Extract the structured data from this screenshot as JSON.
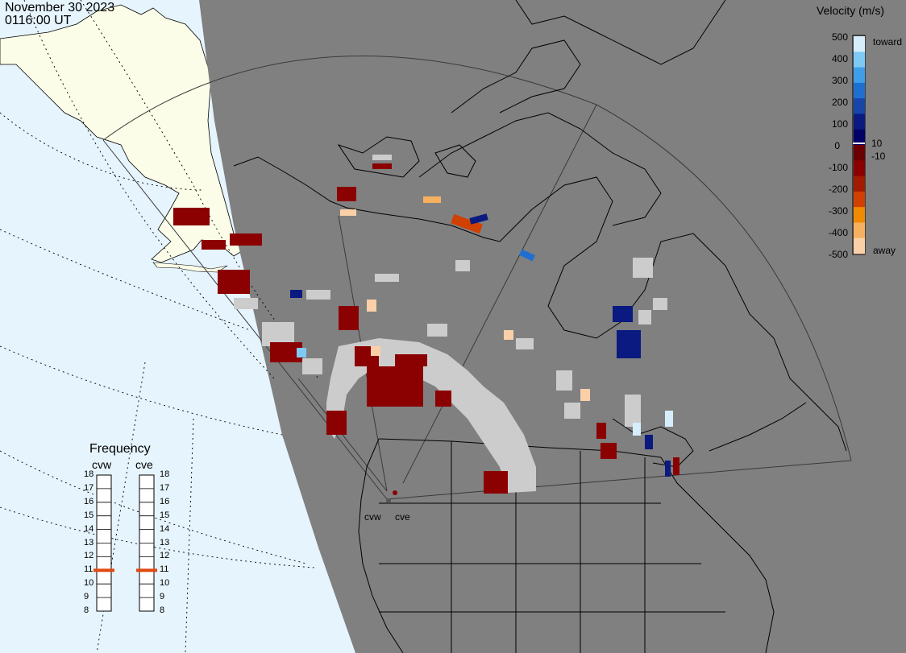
{
  "header": {
    "date": "November 30 2023",
    "time": "0116:00 UT"
  },
  "legend": {
    "title": "Velocity (m/s)",
    "ticks": [
      "500",
      "400",
      "300",
      "200",
      "100",
      "10",
      "0",
      "-10",
      "-100",
      "-200",
      "-300",
      "-400",
      "-500"
    ],
    "toward_label": "toward",
    "away_label": "away",
    "colors": [
      "#d6eefc",
      "#7fc9f5",
      "#3f9ee8",
      "#1f6fd0",
      "#1745a8",
      "#0a1a80",
      "#000066",
      "#6a0000",
      "#8b0000",
      "#a01b00",
      "#d04000",
      "#f08a00",
      "#f7b060",
      "#fbd0a8"
    ]
  },
  "frequency_panel": {
    "title": "Frequency",
    "radars": [
      {
        "name": "cvw",
        "frequency_mhz": 11
      },
      {
        "name": "cve",
        "frequency_mhz": 11
      }
    ],
    "scale": [
      "18",
      "17",
      "16",
      "15",
      "14",
      "13",
      "12",
      "11",
      "10",
      "9",
      "8"
    ],
    "marker_color": "#e04a10"
  },
  "map": {
    "ocean_color": "#e6f4fd",
    "daylight_land_color": "#fbfde8",
    "night_color": "#808080",
    "ground_scatter_color": "#cccccc",
    "radar_labels": [
      "cvw",
      "cve"
    ]
  }
}
